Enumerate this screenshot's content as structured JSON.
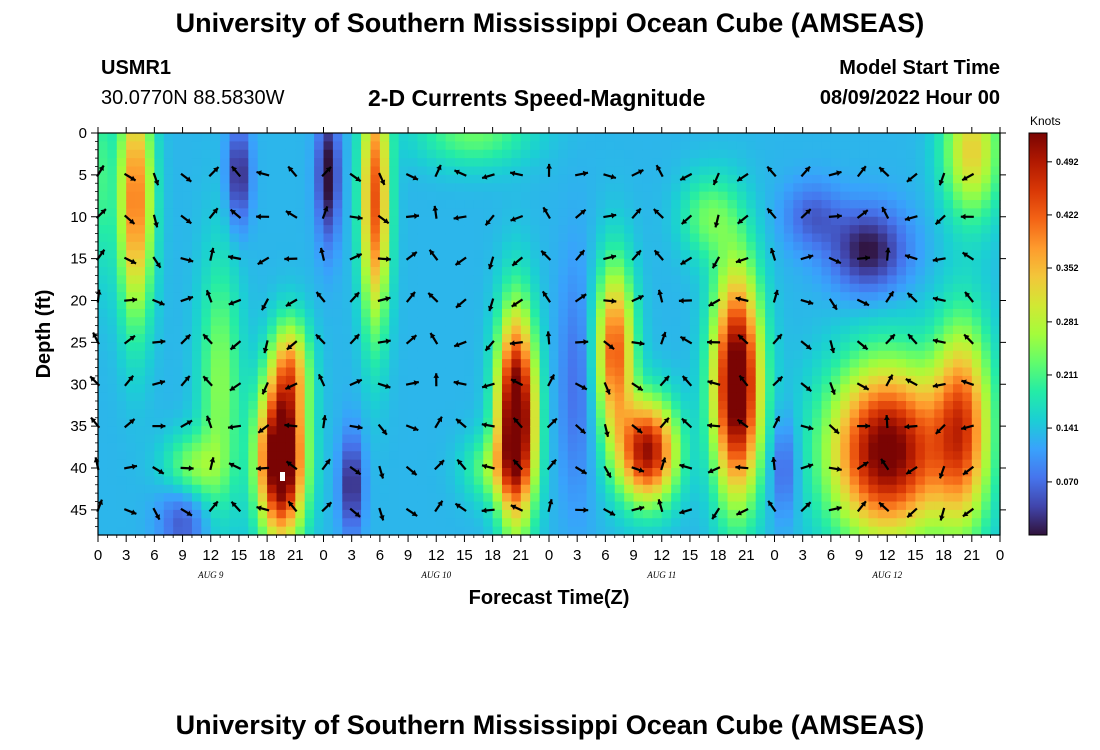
{
  "header": {
    "title": "University of Southern Mississippi Ocean Cube (AMSEAS)",
    "station": "USMR1",
    "coords": "30.0770N  88.5830W",
    "chart_title": "2-D Currents Speed-Magnitude",
    "model_label": "Model Start Time",
    "model_time": "08/09/2022 Hour 00"
  },
  "footer": {
    "title": "University of Southern Mississippi Ocean Cube (AMSEAS)"
  },
  "chart_data": {
    "type": "heatmap",
    "title": "2-D Currents Speed-Magnitude",
    "xlabel": "Forecast Time(Z)",
    "ylabel": "Depth (ft)",
    "xlim": [
      0,
      96
    ],
    "ylim": [
      48,
      0
    ],
    "x_ticks": [
      0,
      3,
      6,
      9,
      12,
      15,
      18,
      21,
      24,
      27,
      30,
      33,
      36,
      39,
      42,
      45,
      48,
      51,
      54,
      57,
      60,
      63,
      66,
      69,
      72,
      75,
      78,
      81,
      84,
      87,
      90,
      93,
      96
    ],
    "x_tick_labels": [
      "0",
      "3",
      "6",
      "9",
      "12",
      "15",
      "18",
      "21",
      "0",
      "3",
      "6",
      "9",
      "12",
      "15",
      "18",
      "21",
      "0",
      "3",
      "6",
      "9",
      "12",
      "15",
      "18",
      "21",
      "0",
      "3",
      "6",
      "9",
      "12",
      "15",
      "18",
      "21",
      "0"
    ],
    "y_ticks": [
      0,
      5,
      10,
      15,
      20,
      25,
      30,
      35,
      40,
      45
    ],
    "y_tick_labels": [
      "0",
      "5",
      "10",
      "15",
      "20",
      "25",
      "30",
      "35",
      "40",
      "45"
    ],
    "date_labels": [
      {
        "x": 12,
        "text": "AUG 9"
      },
      {
        "x": 36,
        "text": "AUG 10"
      },
      {
        "x": 60,
        "text": "AUG 11"
      },
      {
        "x": 84,
        "text": "AUG 12"
      }
    ],
    "colorbar": {
      "unit": "Knots",
      "range": [
        0.0,
        0.53
      ],
      "ticks": [
        "0.492",
        "0.422",
        "0.352",
        "0.281",
        "0.211",
        "0.141",
        "0.070"
      ],
      "tick_values": [
        0.492,
        0.422,
        0.352,
        0.281,
        0.211,
        0.141,
        0.07
      ],
      "colors": [
        "#30123b",
        "#4145ab",
        "#4675ed",
        "#39a2fc",
        "#1bcfd4",
        "#24eca6",
        "#61fc6c",
        "#a4fc3b",
        "#d1e834",
        "#f3c63a",
        "#fe9b2d",
        "#f36315",
        "#d93806",
        "#b11901",
        "#7a0403"
      ]
    },
    "field_blobs": [
      {
        "t": 4,
        "d": 8,
        "st": 1.8,
        "sd": 14,
        "a": 0.28
      },
      {
        "t": 13,
        "d": 30,
        "st": 2.2,
        "sd": 15,
        "a": 0.12
      },
      {
        "t": 19.5,
        "d": 39,
        "st": 2.4,
        "sd": 9,
        "a": 0.5
      },
      {
        "t": 20.5,
        "d": 28,
        "st": 2.0,
        "sd": 6,
        "a": 0.2
      },
      {
        "t": 10,
        "d": 40,
        "st": 3.0,
        "sd": 4,
        "a": 0.12
      },
      {
        "t": 29.5,
        "d": 8,
        "st": 1.5,
        "sd": 15,
        "a": 0.3
      },
      {
        "t": 42,
        "d": 40,
        "st": 3.0,
        "sd": 4,
        "a": 0.1
      },
      {
        "t": 44.5,
        "d": 34,
        "st": 2.0,
        "sd": 12,
        "a": 0.48
      },
      {
        "t": 40,
        "d": 0,
        "st": 6.0,
        "sd": 4,
        "a": 0.1
      },
      {
        "t": 55,
        "d": 26,
        "st": 2.0,
        "sd": 10,
        "a": 0.3
      },
      {
        "t": 58.5,
        "d": 38,
        "st": 3.0,
        "sd": 6,
        "a": 0.38
      },
      {
        "t": 68,
        "d": 30,
        "st": 2.5,
        "sd": 13,
        "a": 0.46
      },
      {
        "t": 65,
        "d": 10,
        "st": 3.0,
        "sd": 5,
        "a": 0.1
      },
      {
        "t": 84,
        "d": 38,
        "st": 6.0,
        "sd": 10,
        "a": 0.42
      },
      {
        "t": 92,
        "d": 35,
        "st": 3.0,
        "sd": 12,
        "a": 0.28
      },
      {
        "t": 93,
        "d": 2,
        "st": 3.0,
        "sd": 8,
        "a": 0.2
      },
      {
        "t": 0,
        "d": 5,
        "st": 1.5,
        "sd": 12,
        "a": 0.08
      }
    ],
    "field_low_blobs": [
      {
        "t": 9,
        "d": 46,
        "st": 2.5,
        "sd": 5,
        "a": 0.08
      },
      {
        "t": 15,
        "d": 5,
        "st": 1.2,
        "sd": 6,
        "a": 0.12
      },
      {
        "t": 24.5,
        "d": 5,
        "st": 1.2,
        "sd": 8,
        "a": 0.14
      },
      {
        "t": 27,
        "d": 42,
        "st": 1.2,
        "sd": 6,
        "a": 0.12
      },
      {
        "t": 51,
        "d": 30,
        "st": 2.0,
        "sd": 14,
        "a": 0.06
      },
      {
        "t": 82,
        "d": 14,
        "st": 4.0,
        "sd": 5,
        "a": 0.13
      },
      {
        "t": 76,
        "d": 10,
        "st": 3.0,
        "sd": 4,
        "a": 0.07
      },
      {
        "t": 73,
        "d": 40,
        "st": 1.5,
        "sd": 6,
        "a": 0.08
      }
    ],
    "field_base": 0.13
  }
}
